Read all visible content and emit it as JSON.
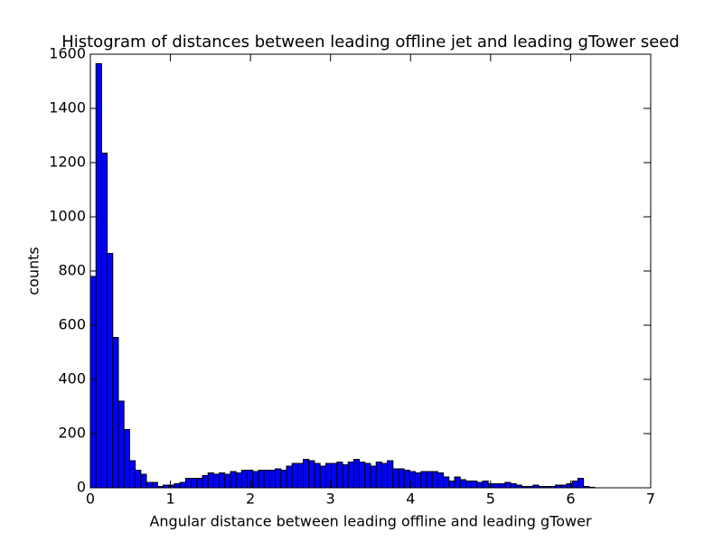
{
  "chart_data": {
    "type": "histogram",
    "title": "Histogram of distances between leading offline jet and leading gTower seed",
    "x_label": "Angular distance between leading offline and leading gTower",
    "y_label": "counts",
    "color": "#0000ff",
    "edge_color": "#000000",
    "bins": [
      0,
      0.07,
      0.14,
      0.21,
      0.28,
      0.35,
      0.42,
      0.49,
      0.56,
      0.63,
      0.7,
      0.77,
      0.84,
      0.91,
      0.98,
      1.05,
      1.12,
      1.19,
      1.26,
      1.33,
      1.4,
      1.47,
      1.54,
      1.61,
      1.68,
      1.75,
      1.82,
      1.89,
      1.96,
      2.03,
      2.1,
      2.17,
      2.24,
      2.31,
      2.38,
      2.45,
      2.52,
      2.59,
      2.66,
      2.73,
      2.8,
      2.87,
      2.94,
      3.01,
      3.08,
      3.15,
      3.22,
      3.29,
      3.36,
      3.43,
      3.5,
      3.57,
      3.64,
      3.71,
      3.78,
      3.85,
      3.92,
      3.99,
      4.06,
      4.13,
      4.2,
      4.27,
      4.34,
      4.41,
      4.48,
      4.55,
      4.62,
      4.69,
      4.76,
      4.83,
      4.9,
      4.97,
      5.04,
      5.11,
      5.18,
      5.25,
      5.32,
      5.39,
      5.46,
      5.53,
      5.6,
      5.67,
      5.74,
      5.81,
      5.88,
      5.95,
      6.02,
      6.09,
      6.16,
      6.23,
      6.3,
      6.37,
      6.44,
      6.51,
      6.58,
      6.65,
      6.72,
      6.79,
      6.86,
      6.93,
      7.0
    ],
    "values": [
      780,
      1565,
      1235,
      865,
      555,
      320,
      215,
      100,
      65,
      50,
      20,
      20,
      5,
      10,
      10,
      15,
      20,
      35,
      35,
      35,
      45,
      55,
      50,
      55,
      50,
      60,
      55,
      65,
      65,
      60,
      65,
      65,
      65,
      70,
      65,
      80,
      90,
      90,
      105,
      100,
      90,
      80,
      90,
      90,
      95,
      85,
      95,
      105,
      95,
      90,
      80,
      95,
      90,
      100,
      70,
      70,
      65,
      60,
      55,
      60,
      60,
      60,
      55,
      40,
      25,
      40,
      30,
      25,
      25,
      20,
      25,
      15,
      15,
      15,
      20,
      15,
      10,
      5,
      5,
      10,
      5,
      5,
      5,
      10,
      10,
      15,
      25,
      35,
      5,
      2,
      0,
      0,
      0,
      0,
      0,
      0,
      0,
      0,
      0,
      0
    ],
    "xlim": [
      0,
      7
    ],
    "xticks": [
      0,
      1,
      2,
      3,
      4,
      5,
      6,
      7
    ],
    "ylim": [
      0,
      1600
    ],
    "yticks": [
      0,
      200,
      400,
      600,
      800,
      1000,
      1200,
      1400,
      1600
    ]
  }
}
